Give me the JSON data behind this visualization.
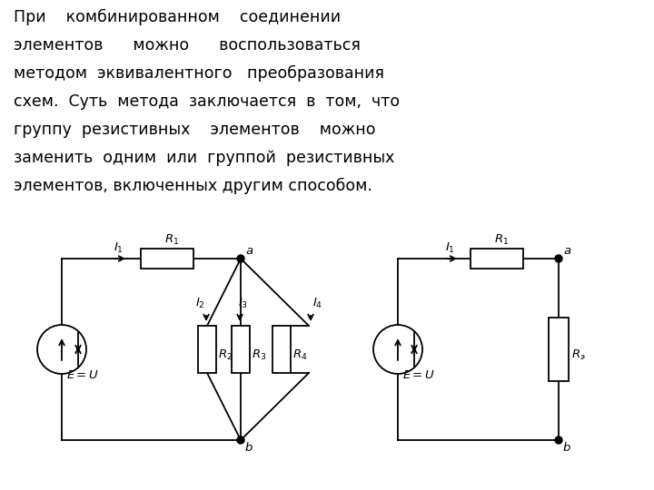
{
  "bg_color": "#ffffff",
  "line_color": "#000000",
  "text_color": "#000000",
  "text_lines": [
    "При    комбинированном    соединении",
    "элементов      можно      воспользоваться",
    "методом  эквивалентного   преобразования",
    "схем.  Суть  метода  заключается  в  том,  что",
    "группу  резистивных    элементов    можно",
    "заменить  одним  или  группой  резистивных",
    "элементов, включенных другим способом."
  ],
  "font_size_text": 12.5,
  "font_size_label": 9.5
}
